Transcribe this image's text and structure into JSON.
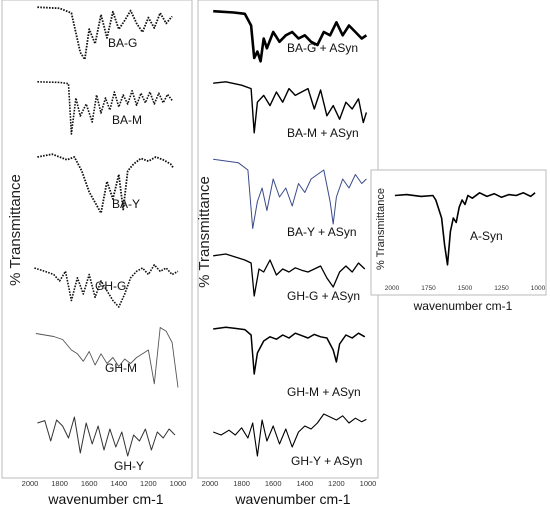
{
  "chart_data": [
    {
      "type": "line",
      "ylabel": "% Transmittance",
      "xlabel": "wavenumber cm-1",
      "xlim": [
        2000,
        1000
      ],
      "x_ticks": [
        "2000",
        "1800",
        "1600",
        "1400",
        "1200",
        "1000"
      ],
      "series": [
        {
          "name": "BA-G",
          "color": "#111111",
          "dash": "dotted",
          "x": [
            1950,
            1800,
            1720,
            1660,
            1630,
            1600,
            1560,
            1520,
            1480,
            1440,
            1400,
            1360,
            1320,
            1280,
            1240,
            1200,
            1160,
            1120,
            1080,
            1040
          ],
          "y": [
            98,
            96,
            88,
            20,
            8,
            60,
            35,
            85,
            45,
            90,
            60,
            75,
            92,
            70,
            55,
            80,
            62,
            88,
            70,
            82
          ]
        },
        {
          "name": "BA-M",
          "color": "#111111",
          "dash": "dotted",
          "x": [
            1950,
            1800,
            1740,
            1720,
            1690,
            1660,
            1620,
            1580,
            1550,
            1520,
            1490,
            1460,
            1430,
            1400,
            1370,
            1340,
            1310,
            1280,
            1250,
            1220,
            1190,
            1160,
            1130,
            1100,
            1070,
            1040
          ],
          "y": [
            97,
            96,
            94,
            10,
            70,
            40,
            60,
            30,
            75,
            45,
            70,
            50,
            80,
            55,
            75,
            60,
            82,
            58,
            78,
            62,
            80,
            60,
            78,
            62,
            76,
            66
          ]
        },
        {
          "name": "BA-Y",
          "color": "#111111",
          "dash": "dotted",
          "x": [
            1950,
            1850,
            1750,
            1700,
            1650,
            1600,
            1560,
            1520,
            1480,
            1440,
            1400,
            1370,
            1340,
            1300,
            1250,
            1200,
            1150,
            1100,
            1050,
            1030
          ],
          "y": [
            90,
            94,
            86,
            90,
            70,
            40,
            25,
            10,
            55,
            30,
            65,
            15,
            70,
            80,
            88,
            84,
            90,
            86,
            80,
            74
          ]
        },
        {
          "name": "GH-G",
          "color": "#111111",
          "dash": "dotted",
          "x": [
            1970,
            1900,
            1840,
            1800,
            1760,
            1720,
            1680,
            1640,
            1600,
            1560,
            1520,
            1480,
            1440,
            1400,
            1360,
            1320,
            1280,
            1240,
            1200,
            1160,
            1120,
            1080,
            1040,
            1000
          ],
          "y": [
            80,
            75,
            70,
            60,
            75,
            30,
            65,
            40,
            70,
            35,
            60,
            45,
            30,
            20,
            40,
            65,
            75,
            80,
            70,
            85,
            75,
            80,
            70,
            75
          ]
        },
        {
          "name": "GH-M",
          "color": "#555555",
          "dash": "solid",
          "x": [
            1960,
            1900,
            1840,
            1780,
            1720,
            1680,
            1640,
            1600,
            1560,
            1520,
            1480,
            1440,
            1400,
            1360,
            1320,
            1280,
            1240,
            1200,
            1160,
            1120,
            1080,
            1040,
            1000
          ],
          "y": [
            82,
            80,
            78,
            74,
            60,
            55,
            45,
            58,
            40,
            55,
            42,
            50,
            38,
            48,
            42,
            50,
            55,
            60,
            15,
            90,
            85,
            70,
            10
          ]
        },
        {
          "name": "GH-Y",
          "color": "#333333",
          "dash": "solid",
          "x": [
            1950,
            1900,
            1860,
            1820,
            1780,
            1740,
            1700,
            1660,
            1620,
            1580,
            1540,
            1500,
            1460,
            1420,
            1380,
            1340,
            1300,
            1260,
            1220,
            1180,
            1140,
            1100,
            1060,
            1020
          ],
          "y": [
            70,
            74,
            40,
            75,
            65,
            45,
            80,
            20,
            70,
            35,
            65,
            25,
            60,
            30,
            55,
            15,
            50,
            40,
            60,
            25,
            55,
            45,
            60,
            50
          ]
        }
      ]
    },
    {
      "type": "line",
      "ylabel": "% Transmittance",
      "xlabel": "wavenumber cm-1",
      "xlim": [
        2000,
        1000
      ],
      "x_ticks": [
        "2000",
        "1800",
        "1600",
        "1400",
        "1200",
        "1000"
      ],
      "series": [
        {
          "name": "BA-G + ASyn",
          "color": "#000000",
          "dash": "solid",
          "x": [
            1980,
            1850,
            1780,
            1740,
            1720,
            1700,
            1680,
            1660,
            1640,
            1600,
            1560,
            1520,
            1480,
            1440,
            1400,
            1360,
            1320,
            1280,
            1240,
            1200,
            1160,
            1120,
            1080,
            1040,
            1010
          ],
          "y": [
            92,
            90,
            88,
            70,
            20,
            30,
            15,
            50,
            35,
            60,
            45,
            55,
            60,
            50,
            55,
            45,
            40,
            60,
            55,
            75,
            55,
            70,
            60,
            50,
            55
          ]
        },
        {
          "name": "BA-M + ASyn",
          "color": "#000000",
          "dash": "solid",
          "x": [
            1980,
            1900,
            1800,
            1740,
            1720,
            1700,
            1660,
            1620,
            1580,
            1540,
            1500,
            1460,
            1420,
            1380,
            1340,
            1300,
            1260,
            1220,
            1180,
            1140,
            1100,
            1060,
            1030,
            1010
          ],
          "y": [
            88,
            90,
            85,
            80,
            15,
            60,
            70,
            55,
            75,
            60,
            80,
            70,
            75,
            80,
            50,
            78,
            40,
            55,
            35,
            60,
            50,
            65,
            30,
            45
          ]
        },
        {
          "name": "BA-Y + ASyn",
          "color": "#3a4a8a",
          "dash": "solid",
          "x": [
            1980,
            1900,
            1820,
            1760,
            1730,
            1700,
            1670,
            1640,
            1600,
            1560,
            1520,
            1480,
            1440,
            1400,
            1360,
            1320,
            1280,
            1240,
            1220,
            1200,
            1160,
            1120,
            1080,
            1040,
            1010
          ],
          "y": [
            92,
            90,
            88,
            80,
            15,
            45,
            60,
            35,
            70,
            50,
            60,
            40,
            65,
            55,
            70,
            75,
            80,
            45,
            20,
            50,
            70,
            60,
            75,
            65,
            70
          ]
        },
        {
          "name": "GH-G + ASyn",
          "color": "#000000",
          "dash": "solid",
          "x": [
            1980,
            1900,
            1840,
            1780,
            1740,
            1720,
            1690,
            1660,
            1620,
            1580,
            1540,
            1500,
            1460,
            1420,
            1380,
            1340,
            1300,
            1260,
            1220,
            1180,
            1140,
            1100,
            1060,
            1020
          ],
          "y": [
            82,
            85,
            80,
            75,
            70,
            15,
            60,
            55,
            75,
            50,
            60,
            55,
            62,
            58,
            55,
            60,
            65,
            45,
            30,
            55,
            65,
            55,
            70,
            60
          ]
        },
        {
          "name": "GH-M + ASyn",
          "color": "#000000",
          "dash": "solid",
          "x": [
            1980,
            1900,
            1840,
            1780,
            1740,
            1720,
            1700,
            1660,
            1620,
            1580,
            1540,
            1500,
            1460,
            1420,
            1380,
            1340,
            1300,
            1260,
            1220,
            1200,
            1180,
            1140,
            1100,
            1060,
            1020
          ],
          "y": [
            85,
            88,
            86,
            84,
            75,
            10,
            45,
            65,
            72,
            68,
            75,
            70,
            78,
            74,
            70,
            76,
            72,
            70,
            50,
            30,
            60,
            75,
            70,
            78,
            72
          ]
        },
        {
          "name": "GH-Y + ASyn",
          "color": "#000000",
          "dash": "solid",
          "x": [
            1980,
            1930,
            1880,
            1840,
            1800,
            1760,
            1730,
            1700,
            1670,
            1640,
            1600,
            1560,
            1520,
            1480,
            1440,
            1400,
            1360,
            1320,
            1280,
            1240,
            1200,
            1160,
            1120,
            1080,
            1040,
            1010
          ],
          "y": [
            55,
            50,
            58,
            50,
            62,
            45,
            70,
            15,
            75,
            40,
            65,
            35,
            60,
            30,
            55,
            65,
            60,
            70,
            85,
            80,
            75,
            82,
            70,
            78,
            72,
            76
          ]
        }
      ]
    },
    {
      "type": "line",
      "ylabel": "% Transmittance",
      "xlabel": "wavenumber cm-1",
      "xlim": [
        2000,
        1000
      ],
      "x_ticks": [
        "2000",
        "1750",
        "1500",
        "1250",
        "1000"
      ],
      "series": [
        {
          "name": "A-Syn",
          "color": "#000000",
          "dash": "solid",
          "x": [
            1980,
            1900,
            1800,
            1720,
            1700,
            1680,
            1660,
            1640,
            1620,
            1600,
            1580,
            1560,
            1540,
            1520,
            1500,
            1480,
            1450,
            1400,
            1350,
            1300,
            1250,
            1200,
            1150,
            1100,
            1050,
            1020
          ],
          "y": [
            85,
            86,
            84,
            85,
            80,
            70,
            60,
            30,
            8,
            45,
            60,
            55,
            72,
            80,
            75,
            85,
            82,
            88,
            84,
            87,
            83,
            86,
            85,
            88,
            84,
            88
          ]
        }
      ]
    }
  ]
}
